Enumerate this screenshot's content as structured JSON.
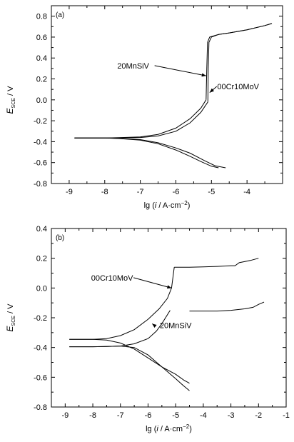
{
  "chart_data": [
    {
      "type": "line",
      "panel_label": "(a)",
      "xlabel_prefix": "lg (",
      "xlabel_var": "i",
      "xlabel_unit": " / A·cm",
      "xlabel_exp": "−2",
      "xlabel_suffix": ")",
      "ylabel_main": "E",
      "ylabel_sub": "SCE",
      "ylabel_unit": " / V",
      "xlim": [
        -9.5,
        -3
      ],
      "ylim": [
        -0.8,
        0.9
      ],
      "xticks": [
        -9,
        -8,
        -7,
        -6,
        -5,
        -4
      ],
      "xtick_labels": [
        "-9",
        "-8",
        "-7",
        "-6",
        "-5",
        "-4"
      ],
      "yticks": [
        -0.8,
        -0.6,
        -0.4,
        -0.2,
        0.0,
        0.2,
        0.4,
        0.6,
        0.8
      ],
      "ytick_labels": [
        "-0.8",
        "-0.6",
        "-0.4",
        "-0.2",
        "0.0",
        "0.2",
        "0.4",
        "0.6",
        "0.8"
      ],
      "series": [
        {
          "name": "20MnSiV",
          "curves": [
            {
              "x": [
                -8.85,
                -8.0,
                -7.6,
                -7.0,
                -6.5,
                -6.0,
                -5.6,
                -5.3,
                -5.15
              ],
              "y": [
                -0.365,
                -0.365,
                -0.362,
                -0.355,
                -0.33,
                -0.27,
                -0.18,
                -0.08,
                0.0
              ]
            },
            {
              "x": [
                -5.15,
                -5.13,
                -5.11,
                -5.05,
                -4.8,
                -4.5,
                -4.0,
                -3.5,
                -3.3
              ],
              "y": [
                0.0,
                0.3,
                0.55,
                0.6,
                0.625,
                0.64,
                0.67,
                0.71,
                0.73
              ]
            },
            {
              "x": [
                -8.85,
                -8.0,
                -7.6,
                -7.0,
                -6.5,
                -6.0,
                -5.6,
                -5.3,
                -5.0,
                -4.8
              ],
              "y": [
                -0.365,
                -0.365,
                -0.37,
                -0.385,
                -0.42,
                -0.48,
                -0.54,
                -0.59,
                -0.635,
                -0.65
              ]
            }
          ]
        },
        {
          "name": "00Cr10MoV",
          "curves": [
            {
              "x": [
                -8.85,
                -8.0,
                -7.6,
                -7.0,
                -6.5,
                -6.0,
                -5.6,
                -5.3,
                -5.1
              ],
              "y": [
                -0.365,
                -0.365,
                -0.363,
                -0.36,
                -0.345,
                -0.3,
                -0.22,
                -0.12,
                -0.02
              ]
            },
            {
              "x": [
                -5.1,
                -5.09,
                -5.07,
                -5.0,
                -4.8,
                -4.5,
                -4.0,
                -3.5,
                -3.3
              ],
              "y": [
                -0.02,
                0.3,
                0.55,
                0.6,
                0.625,
                0.64,
                0.67,
                0.71,
                0.73
              ]
            },
            {
              "x": [
                -8.85,
                -8.0,
                -7.6,
                -7.0,
                -6.5,
                -6.0,
                -5.6,
                -5.2,
                -4.9,
                -4.6
              ],
              "y": [
                -0.365,
                -0.365,
                -0.368,
                -0.38,
                -0.41,
                -0.46,
                -0.51,
                -0.58,
                -0.63,
                -0.65
              ]
            }
          ]
        }
      ],
      "annotations": [
        {
          "text": "20MnSiV",
          "at": [
            -7.2,
            0.3
          ],
          "arrow_to": [
            -5.15,
            0.23
          ]
        },
        {
          "text": "00Cr10MoV",
          "at": [
            -4.25,
            0.1
          ],
          "arrow_to": [
            -5.05,
            0.07
          ]
        }
      ]
    },
    {
      "type": "line",
      "panel_label": "(b)",
      "xlabel_prefix": "lg (",
      "xlabel_var": "i",
      "xlabel_unit": " / A·cm",
      "xlabel_exp": "−2",
      "xlabel_suffix": ")",
      "ylabel_main": "E",
      "ylabel_sub": "SCE",
      "ylabel_unit": " / V",
      "xlim": [
        -9.5,
        -1
      ],
      "ylim": [
        -0.8,
        0.4
      ],
      "xticks": [
        -9,
        -8,
        -7,
        -6,
        -5,
        -4,
        -3,
        -2,
        -1
      ],
      "xtick_labels": [
        "-9",
        "-8",
        "-7",
        "-6",
        "-5",
        "-4",
        "-3",
        "-2",
        "-1"
      ],
      "yticks": [
        -0.8,
        -0.6,
        -0.4,
        -0.2,
        0.0,
        0.2,
        0.4
      ],
      "ytick_labels": [
        "-0.8",
        "-0.6",
        "-0.4",
        "-0.2",
        "0.0",
        "0.2",
        "0.4"
      ],
      "series": [
        {
          "name": "00Cr10MoV",
          "curves": [
            {
              "x": [
                -8.85,
                -8.0,
                -7.5,
                -7.0,
                -6.5,
                -6.0,
                -5.6,
                -5.3,
                -5.15,
                -5.05
              ],
              "y": [
                -0.345,
                -0.345,
                -0.34,
                -0.32,
                -0.28,
                -0.21,
                -0.14,
                -0.07,
                0.0,
                0.14
              ]
            },
            {
              "x": [
                -5.05,
                -4.5,
                -4.0,
                -3.5,
                -3.0,
                -2.85,
                -2.7,
                -2.3,
                -2.0
              ],
              "y": [
                0.14,
                0.14,
                0.142,
                0.145,
                0.15,
                0.15,
                0.17,
                0.185,
                0.2
              ]
            },
            {
              "x": [
                -8.85,
                -8.0,
                -7.5,
                -7.0,
                -6.5,
                -6.0,
                -5.5,
                -5.0,
                -4.7,
                -4.5
              ],
              "y": [
                -0.345,
                -0.345,
                -0.35,
                -0.37,
                -0.41,
                -0.47,
                -0.53,
                -0.58,
                -0.62,
                -0.64
              ]
            }
          ]
        },
        {
          "name": "20MnSiV",
          "curves": [
            {
              "x": [
                -8.85,
                -8.0,
                -7.5,
                -7.0,
                -6.5,
                -6.0,
                -5.7,
                -5.5,
                -5.2
              ],
              "y": [
                -0.395,
                -0.395,
                -0.393,
                -0.39,
                -0.375,
                -0.34,
                -0.29,
                -0.24,
                -0.15
              ]
            },
            {
              "x": [
                -4.5,
                -4.0,
                -3.5,
                -3.0,
                -2.5,
                -2.2,
                -2.0,
                -1.8
              ],
              "y": [
                -0.155,
                -0.155,
                -0.155,
                -0.15,
                -0.14,
                -0.13,
                -0.11,
                -0.095
              ]
            },
            {
              "x": [
                -8.85,
                -8.0,
                -7.5,
                -7.0,
                -6.5,
                -6.0,
                -5.5,
                -5.0,
                -4.7,
                -4.5
              ],
              "y": [
                -0.395,
                -0.395,
                -0.393,
                -0.39,
                -0.4,
                -0.45,
                -0.53,
                -0.61,
                -0.66,
                -0.69
              ]
            }
          ]
        }
      ],
      "annotations": [
        {
          "text": "00Cr10MoV",
          "at": [
            -7.3,
            0.05
          ],
          "arrow_to": [
            -5.15,
            0.0
          ]
        },
        {
          "text": "20MnSiV",
          "at": [
            -5.0,
            -0.27
          ],
          "arrow_to": [
            -5.85,
            -0.24
          ]
        }
      ]
    }
  ]
}
